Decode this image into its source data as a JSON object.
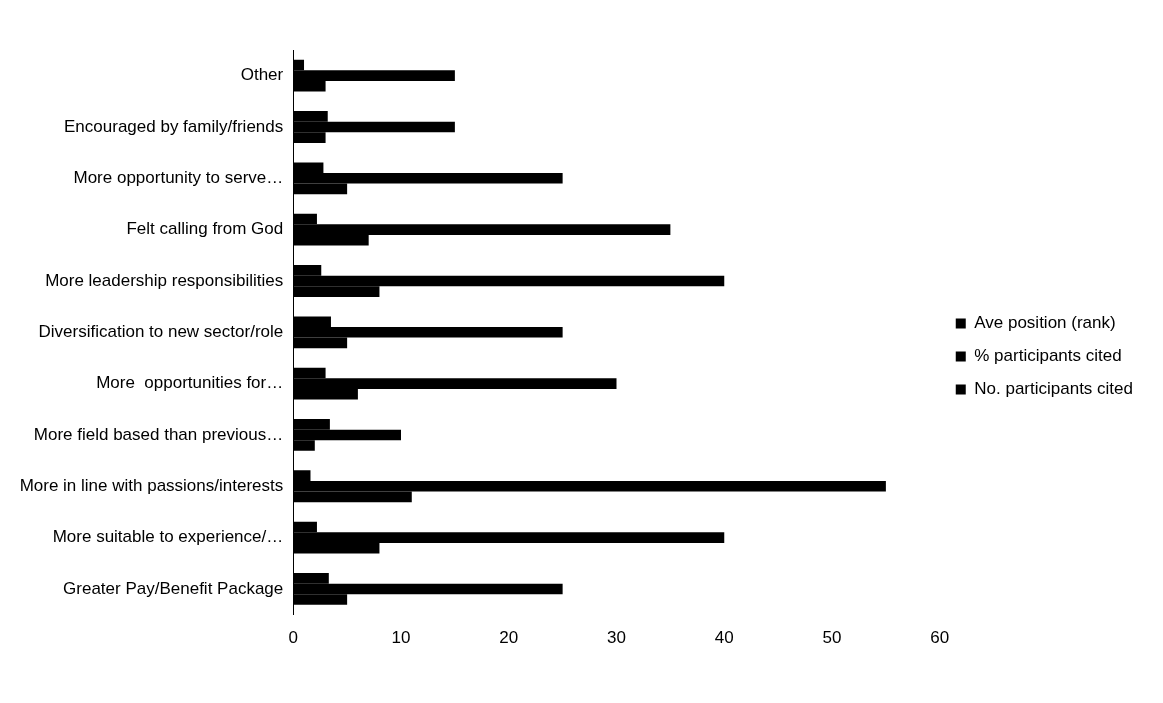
{
  "chart_data": {
    "type": "bar",
    "orientation": "horizontal",
    "categories": [
      "Other",
      "Encouraged by family/friends",
      "More opportunity to serve…",
      "Felt calling from God",
      "More leadership responsibilities",
      "Diversification to new sector/role",
      "More  opportunities for…",
      "More field based than previous…",
      "More in line with passions/interests",
      "More suitable to experience/…",
      "Greater Pay/Benefit Package"
    ],
    "series": [
      {
        "name": "Ave position (rank)",
        "color": "#000000",
        "values": [
          1.0,
          3.2,
          2.8,
          2.2,
          2.6,
          3.5,
          3.0,
          3.4,
          1.6,
          2.2,
          3.3
        ]
      },
      {
        "name": "% participants cited",
        "color": "#000000",
        "values": [
          15,
          15,
          25,
          35,
          40,
          25,
          30,
          10,
          55,
          40,
          25
        ]
      },
      {
        "name": "No. participants cited",
        "color": "#000000",
        "values": [
          3,
          3,
          5,
          7,
          8,
          5,
          6,
          2,
          11,
          8,
          5
        ]
      }
    ],
    "xlim": [
      0,
      60
    ],
    "xticks": [
      0,
      10,
      20,
      30,
      40,
      50,
      60
    ],
    "grid": false,
    "legend": "right"
  }
}
